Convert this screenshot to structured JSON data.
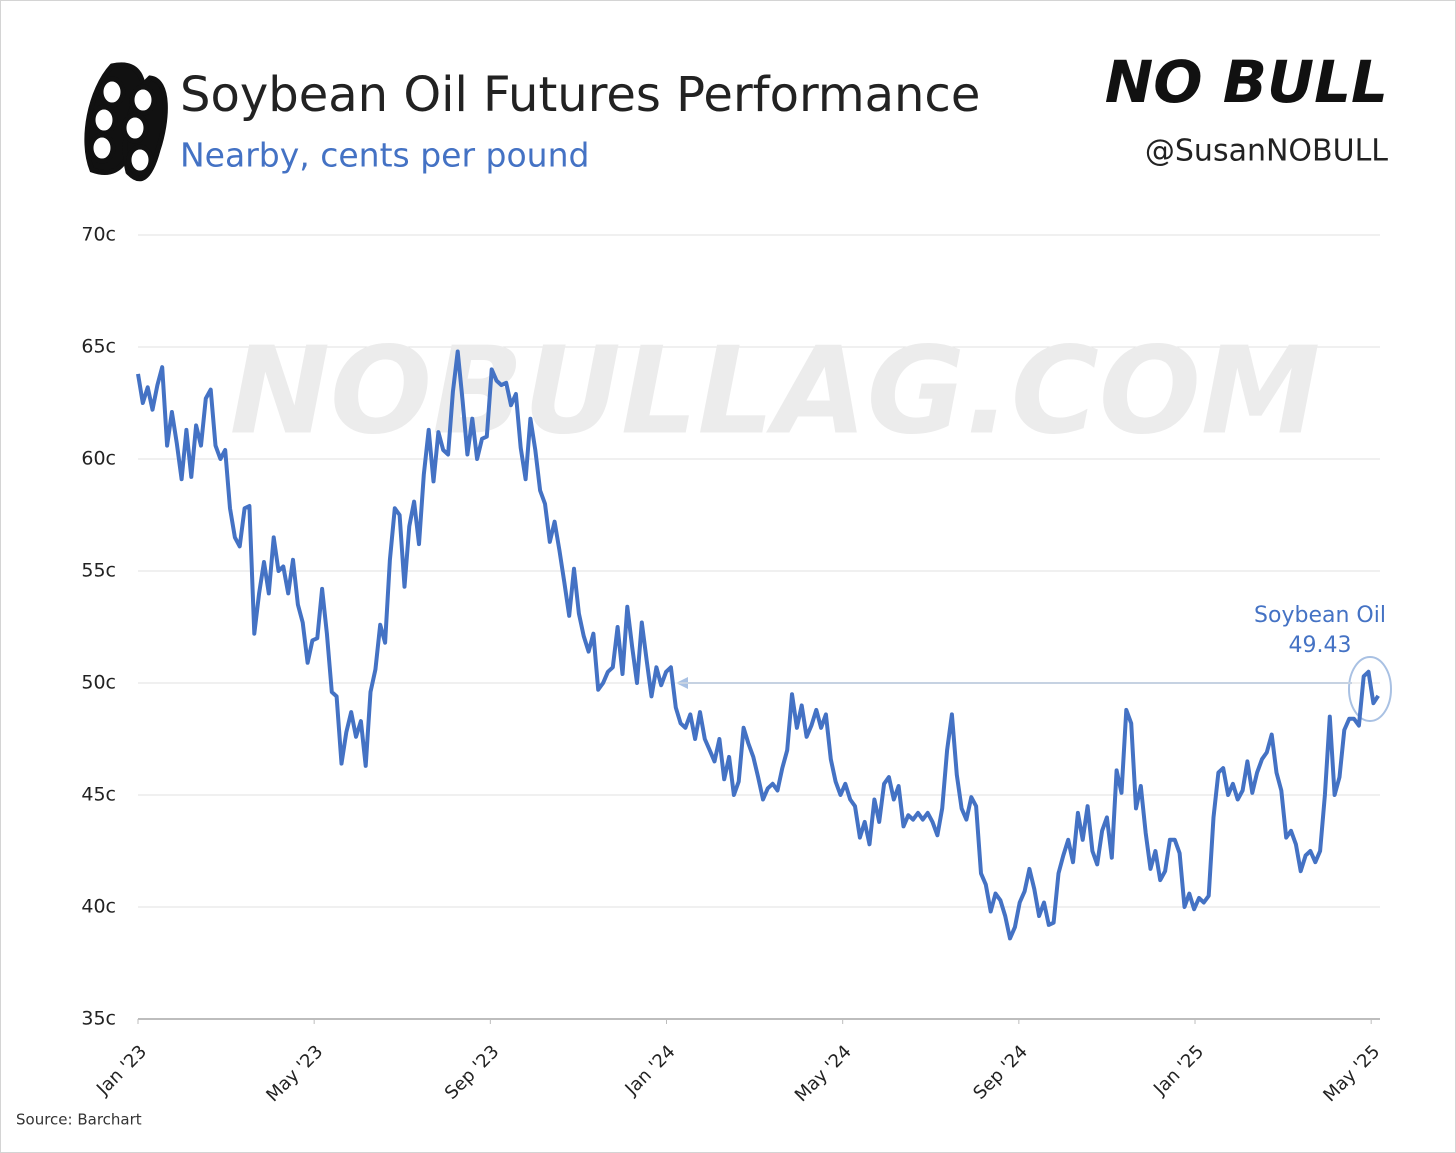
{
  "chart_data": {
    "type": "line",
    "title": "Soybean Oil Futures Performance",
    "subtitle": "Nearby, cents per pound",
    "logo": "NO BULL",
    "handle": "@SusanNOBULL",
    "watermark": "NOBULLAG.COM",
    "source": "Source: Barchart",
    "xlim": [
      0,
      28.2
    ],
    "xticks": [
      {
        "value": 0,
        "label": "Jan '23"
      },
      {
        "value": 4,
        "label": "May '23"
      },
      {
        "value": 8,
        "label": "Sep '23"
      },
      {
        "value": 12,
        "label": "Jan '24"
      },
      {
        "value": 16,
        "label": "May '24"
      },
      {
        "value": 20,
        "label": "Sep '24"
      },
      {
        "value": 24,
        "label": "Jan '25"
      },
      {
        "value": 28,
        "label": "May '25"
      }
    ],
    "ylim": [
      35,
      70
    ],
    "yticks": [
      {
        "value": 35,
        "label": "35c"
      },
      {
        "value": 40,
        "label": "40c"
      },
      {
        "value": 45,
        "label": "45c"
      },
      {
        "value": 50,
        "label": "50c"
      },
      {
        "value": 55,
        "label": "55c"
      },
      {
        "value": 60,
        "label": "60c"
      },
      {
        "value": 65,
        "label": "65c"
      },
      {
        "value": 70,
        "label": "70c"
      }
    ],
    "grid": true,
    "x": [
      0,
      0.11,
      0.22,
      0.33,
      0.44,
      0.55,
      0.66,
      0.77,
      0.88,
      0.99,
      1.1,
      1.21,
      1.32,
      1.43,
      1.54,
      1.65,
      1.76,
      1.87,
      1.98,
      2.09,
      2.2,
      2.31,
      2.42,
      2.53,
      2.64,
      2.75,
      2.86,
      2.97,
      3.08,
      3.19,
      3.3,
      3.41,
      3.52,
      3.63,
      3.74,
      3.85,
      3.96,
      4.07,
      4.18,
      4.29,
      4.4,
      4.51,
      4.62,
      4.73,
      4.84,
      4.95,
      5.06,
      5.17,
      5.28,
      5.39,
      5.5,
      5.61,
      5.72,
      5.83,
      5.94,
      6.05,
      6.16,
      6.27,
      6.38,
      6.49,
      6.6,
      6.71,
      6.82,
      6.93,
      7.04,
      7.15,
      7.26,
      7.37,
      7.48,
      7.59,
      7.7,
      7.81,
      7.92,
      8.03,
      8.14,
      8.25,
      8.36,
      8.47,
      8.58,
      8.69,
      8.8,
      8.91,
      9.02,
      9.13,
      9.24,
      9.35,
      9.46,
      9.57,
      9.68,
      9.79,
      9.9,
      10.01,
      10.12,
      10.23,
      10.34,
      10.45,
      10.56,
      10.67,
      10.78,
      10.89,
      11,
      11.11,
      11.22,
      11.33,
      11.44,
      11.55,
      11.66,
      11.77,
      11.88,
      11.99,
      12.1,
      12.21,
      12.32,
      12.43,
      12.54,
      12.65,
      12.76,
      12.87,
      12.98,
      13.09,
      13.2,
      13.31,
      13.42,
      13.53,
      13.64,
      13.75,
      13.86,
      13.97,
      14.08,
      14.19,
      14.3,
      14.41,
      14.52,
      14.63,
      14.74,
      14.85,
      14.96,
      15.07,
      15.18,
      15.29,
      15.4,
      15.51,
      15.62,
      15.73,
      15.84,
      15.95,
      16.06,
      16.17,
      16.28,
      16.39,
      16.5,
      16.61,
      16.72,
      16.83,
      16.94,
      17.05,
      17.16,
      17.27,
      17.38,
      17.49,
      17.6,
      17.71,
      17.82,
      17.93,
      18.04,
      18.15,
      18.26,
      18.37,
      18.48,
      18.59,
      18.7,
      18.81,
      18.92,
      19.03,
      19.14,
      19.25,
      19.36,
      19.47,
      19.58,
      19.69,
      19.8,
      19.91,
      20.02,
      20.13,
      20.24,
      20.35,
      20.46,
      20.57,
      20.68,
      20.79,
      20.9,
      21.01,
      21.12,
      21.23,
      21.34,
      21.45,
      21.56,
      21.67,
      21.78,
      21.89,
      22,
      22.11,
      22.22,
      22.33,
      22.44,
      22.55,
      22.66,
      22.77,
      22.88,
      22.99,
      23.1,
      23.21,
      23.32,
      23.43,
      23.54,
      23.65,
      23.76,
      23.87,
      23.98,
      24.09,
      24.2,
      24.31,
      24.42,
      24.53,
      24.64,
      24.75,
      24.86,
      24.97,
      25.08,
      25.19,
      25.3,
      25.41,
      25.52,
      25.63,
      25.74,
      25.85,
      25.96,
      26.07,
      26.18,
      26.29,
      26.4,
      26.51,
      26.62,
      26.73,
      26.84,
      26.95,
      27.06,
      27.17,
      27.28,
      27.39,
      27.5,
      27.61,
      27.72,
      27.83,
      27.94,
      28.05,
      28.16
    ],
    "series": [
      {
        "name": "Soybean Oil",
        "color": "#4472c4",
        "values": [
          63.8,
          62.5,
          63.2,
          62.2,
          63.3,
          64.1,
          60.6,
          62.1,
          60.7,
          59.1,
          61.3,
          59.2,
          61.5,
          60.6,
          62.7,
          63.1,
          60.6,
          60.0,
          60.4,
          57.8,
          56.5,
          56.1,
          57.8,
          57.9,
          52.2,
          54.0,
          55.4,
          54.0,
          56.5,
          55.0,
          55.2,
          54.0,
          55.5,
          53.5,
          52.7,
          50.9,
          51.9,
          52.0,
          54.2,
          52.2,
          49.6,
          49.4,
          46.4,
          47.8,
          48.7,
          47.6,
          48.3,
          46.3,
          49.6,
          50.6,
          52.6,
          51.8,
          55.5,
          57.8,
          57.5,
          54.3,
          57.0,
          58.1,
          56.2,
          59.3,
          61.3,
          59.0,
          61.2,
          60.4,
          60.2,
          63.0,
          64.8,
          62.6,
          60.2,
          61.8,
          60.0,
          60.9,
          61.0,
          64.0,
          63.5,
          63.3,
          63.4,
          62.4,
          62.9,
          60.5,
          59.1,
          61.8,
          60.4,
          58.6,
          58.0,
          56.3,
          57.2,
          55.9,
          54.5,
          53.0,
          55.1,
          53.1,
          52.1,
          51.4,
          52.2,
          49.7,
          50.0,
          50.5,
          50.7,
          52.5,
          50.4,
          53.4,
          51.6,
          50.0,
          52.7,
          51.0,
          49.4,
          50.7,
          49.9,
          50.5,
          50.7,
          48.9,
          48.2,
          48.0,
          48.6,
          47.5,
          48.7,
          47.5,
          47.0,
          46.5,
          47.5,
          45.7,
          46.7,
          45.0,
          45.6,
          48.0,
          47.3,
          46.7,
          45.8,
          44.8,
          45.3,
          45.5,
          45.2,
          46.2,
          47.0,
          49.5,
          48.0,
          49.0,
          47.6,
          48.1,
          48.8,
          48.0,
          48.6,
          46.6,
          45.6,
          45.0,
          45.5,
          44.8,
          44.5,
          43.1,
          43.8,
          42.8,
          44.8,
          43.8,
          45.5,
          45.8,
          44.8,
          45.4,
          43.6,
          44.1,
          43.9,
          44.2,
          43.9,
          44.2,
          43.8,
          43.2,
          44.4,
          47.0,
          48.6,
          45.9,
          44.4,
          43.9,
          44.9,
          44.5,
          41.5,
          41.0,
          39.8,
          40.6,
          40.3,
          39.6,
          38.6,
          39.1,
          40.2,
          40.7,
          41.7,
          40.8,
          39.6,
          40.2,
          39.2,
          39.3,
          41.5,
          42.3,
          43.0,
          42.0,
          44.2,
          43.0,
          44.5,
          42.5,
          41.9,
          43.4,
          44.0,
          42.2,
          46.1,
          45.1,
          48.8,
          48.2,
          44.4,
          45.4,
          43.3,
          41.7,
          42.5,
          41.2,
          41.6,
          43.0,
          43.0,
          42.4,
          40.0,
          40.6,
          39.9,
          40.4,
          40.2,
          40.5,
          44.0,
          46.0,
          46.2,
          45.0,
          45.5,
          44.8,
          45.2,
          46.5,
          45.1,
          46.0,
          46.6,
          46.9,
          47.7,
          46.0,
          45.2,
          43.1,
          43.4,
          42.8,
          41.6,
          42.3,
          42.5,
          42.0,
          42.5,
          45.0,
          48.5,
          45.0,
          45.8,
          47.9,
          48.4,
          48.4,
          48.1,
          50.3,
          50.5,
          49.1,
          49.43
        ]
      }
    ]
  }
}
